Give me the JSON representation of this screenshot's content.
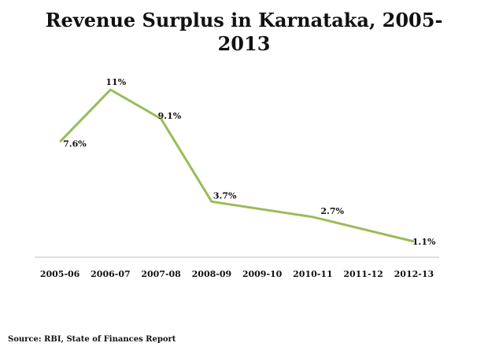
{
  "chart_data": {
    "type": "line",
    "title_lines": [
      "Revenue Surplus in Karnataka, 2005-",
      "2013"
    ],
    "categories": [
      "2005-06",
      "2006-07",
      "2007-08",
      "2008-09",
      "2009-10",
      "2010-11",
      "2011-12",
      "2012-13"
    ],
    "points": [
      {
        "x": "2005-06",
        "y": 7.6,
        "label": "7.6%"
      },
      {
        "x": "2006-07",
        "y": 11,
        "label": "11%"
      },
      {
        "x": "2007-08",
        "y": 9.1,
        "label": "9.1%"
      },
      {
        "x": "2008-09",
        "y": 3.7,
        "label": "3.7%"
      },
      {
        "x": "2010-11",
        "y": 2.7,
        "label": "2.7%"
      },
      {
        "x": "2012-13",
        "y": 1.1,
        "label": "1.1%"
      }
    ],
    "ylim": [
      0,
      12
    ],
    "grid": false,
    "line_color": "#9bbb59",
    "axis_color": "#bfbfbf"
  },
  "source": "Source: RBI, State of Finances Report"
}
